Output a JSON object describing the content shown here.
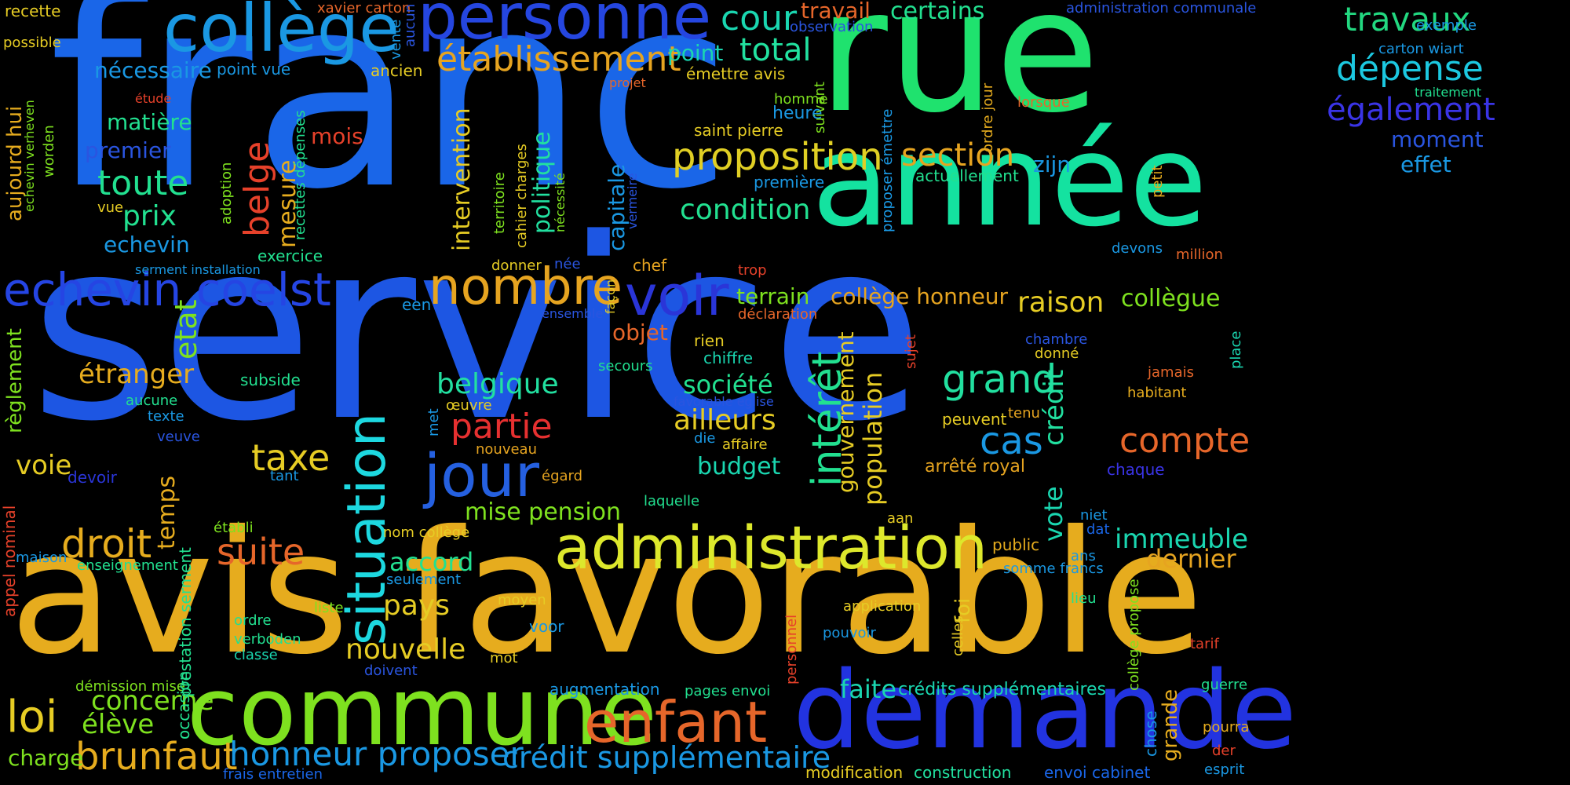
{
  "words": [
    {
      "text": "service",
      "color": "#1d56e3"
    },
    {
      "text": "franc",
      "color": "#1a66e8"
    },
    {
      "text": "avis favorable",
      "color": "#e6ac1e"
    },
    {
      "text": "rue",
      "color": "#1fe26e"
    },
    {
      "text": "année",
      "color": "#14e2a0"
    },
    {
      "text": "commune",
      "color": "#7ee11f"
    },
    {
      "text": "demande",
      "color": "#2233e0"
    },
    {
      "text": "collège",
      "color": "#1a98e3"
    },
    {
      "text": "personne",
      "color": "#2546e0"
    },
    {
      "text": "administration",
      "color": "#dde82c"
    },
    {
      "text": "enfant",
      "color": "#e6662a"
    },
    {
      "text": "situation",
      "color": "#1dd8e0"
    },
    {
      "text": "nombre",
      "color": "#e6a420"
    },
    {
      "text": "echevin coelst",
      "color": "#2545e3"
    },
    {
      "text": "voir",
      "color": "#2a35d8"
    },
    {
      "text": "jour",
      "color": "#2560e0"
    },
    {
      "text": "proposition",
      "color": "#e0cf24"
    },
    {
      "text": "établissement",
      "color": "#e6a420"
    },
    {
      "text": "travaux",
      "color": "#22d880"
    },
    {
      "text": "dépense",
      "color": "#1cc8e0"
    },
    {
      "text": "également",
      "color": "#3a34e6"
    },
    {
      "text": "cour",
      "color": "#1ad6b0"
    },
    {
      "text": "total",
      "color": "#22e2a0"
    },
    {
      "text": "brunfaut",
      "color": "#e6ac1e"
    },
    {
      "text": "loi",
      "color": "#e6cc24"
    },
    {
      "text": "crédit supplémentaire",
      "color": "#1a98e3"
    },
    {
      "text": "honneur proposer",
      "color": "#1a98e3"
    },
    {
      "text": "suite",
      "color": "#e6662a"
    },
    {
      "text": "droit",
      "color": "#e6ac1e"
    },
    {
      "text": "compte",
      "color": "#e6662a"
    },
    {
      "text": "intérêt",
      "color": "#22e090"
    },
    {
      "text": "grand",
      "color": "#22e0a0"
    },
    {
      "text": "cas",
      "color": "#1a98e3"
    },
    {
      "text": "taxe",
      "color": "#e6cc24"
    },
    {
      "text": "section",
      "color": "#e6a420"
    },
    {
      "text": "belge",
      "color": "#e6412a"
    },
    {
      "text": "partie",
      "color": "#e63030"
    },
    {
      "text": "condition",
      "color": "#22e090"
    },
    {
      "text": "raison",
      "color": "#e6cc24"
    },
    {
      "text": "toute",
      "color": "#22e090"
    },
    {
      "text": "nouvelle",
      "color": "#e6cc24"
    },
    {
      "text": "pays",
      "color": "#e6cc24"
    },
    {
      "text": "étranger",
      "color": "#e6ac1e"
    },
    {
      "text": "immeuble",
      "color": "#1ad6b0"
    },
    {
      "text": "belgique",
      "color": "#22e0a0"
    },
    {
      "text": "ailleurs",
      "color": "#e6cc24"
    },
    {
      "text": "prix",
      "color": "#22e090"
    },
    {
      "text": "dernier",
      "color": "#e6a420"
    },
    {
      "text": "voie",
      "color": "#e6cc24"
    },
    {
      "text": "faite",
      "color": "#1ad6b0"
    },
    {
      "text": "concerne",
      "color": "#7ee11f"
    },
    {
      "text": "élève",
      "color": "#7ee11f"
    },
    {
      "text": "mise pension",
      "color": "#7ee11f"
    },
    {
      "text": "accord",
      "color": "#22e090"
    },
    {
      "text": "société",
      "color": "#22e090"
    },
    {
      "text": "terrain",
      "color": "#7ee11f"
    },
    {
      "text": "collège honneur",
      "color": "#e6a420"
    },
    {
      "text": "collègue",
      "color": "#7ee11f"
    },
    {
      "text": "budget",
      "color": "#1ad6b0"
    },
    {
      "text": "charge",
      "color": "#7ee11f"
    },
    {
      "text": "premier",
      "color": "#2a55e0"
    },
    {
      "text": "nécessaire",
      "color": "#1a98e3"
    },
    {
      "text": "matière",
      "color": "#22e090"
    },
    {
      "text": "echevin",
      "color": "#1a98e3"
    },
    {
      "text": "moment",
      "color": "#2a55e0"
    },
    {
      "text": "effet",
      "color": "#1a98e3"
    },
    {
      "text": "zijn",
      "color": "#1a98e3"
    },
    {
      "text": "mois",
      "color": "#e6412a"
    },
    {
      "text": "objet",
      "color": "#e6662a"
    },
    {
      "text": "travail",
      "color": "#e6662a"
    },
    {
      "text": "certains",
      "color": "#22e090"
    },
    {
      "text": "point",
      "color": "#1ad6b0"
    },
    {
      "text": "crédits supplémentaires",
      "color": "#1ad6b0"
    },
    {
      "text": "augmentation",
      "color": "#1a98e3"
    },
    {
      "text": "exercice",
      "color": "#22e090"
    },
    {
      "text": "arrêté royal",
      "color": "#e6a420"
    },
    {
      "text": "actuellement",
      "color": "#22e090"
    },
    {
      "text": "point vue",
      "color": "#1a98e3"
    },
    {
      "text": "ancien",
      "color": "#e6cc24"
    },
    {
      "text": "saint pierre",
      "color": "#e6cc24"
    },
    {
      "text": "émettre avis",
      "color": "#e6cc24"
    },
    {
      "text": "première",
      "color": "#1a98e3"
    },
    {
      "text": "heure",
      "color": "#1a98e3"
    },
    {
      "text": "homme",
      "color": "#7ee11f"
    },
    {
      "text": "subside",
      "color": "#22e090"
    },
    {
      "text": "aucune",
      "color": "#22e090"
    },
    {
      "text": "texte",
      "color": "#1a98e3"
    },
    {
      "text": "veuve",
      "color": "#2a55e0"
    },
    {
      "text": "devoir",
      "color": "#2a35d8"
    },
    {
      "text": "tant",
      "color": "#1a98e3"
    },
    {
      "text": "enseignement",
      "color": "#22e090"
    },
    {
      "text": "maison",
      "color": "#1a98e3"
    },
    {
      "text": "établi",
      "color": "#7ee11f"
    },
    {
      "text": "seulement",
      "color": "#1a98e3"
    },
    {
      "text": "nom collège",
      "color": "#e6cc24"
    },
    {
      "text": "liste",
      "color": "#7ee11f"
    },
    {
      "text": "ordre",
      "color": "#22e090"
    },
    {
      "text": "verboden",
      "color": "#22e090"
    },
    {
      "text": "classe",
      "color": "#1ad6b0"
    },
    {
      "text": "doivent",
      "color": "#2a55e0"
    },
    {
      "text": "moyen",
      "color": "#e6cc24"
    },
    {
      "text": "mot",
      "color": "#e6cc24"
    },
    {
      "text": "voor",
      "color": "#1a98e3"
    },
    {
      "text": "démission mise",
      "color": "#7ee11f"
    },
    {
      "text": "pages envoi",
      "color": "#22e090"
    },
    {
      "text": "frais entretien",
      "color": "#1a66e8"
    },
    {
      "text": "modification",
      "color": "#e6cc24"
    },
    {
      "text": "construction",
      "color": "#22e0a0"
    },
    {
      "text": "envoi cabinet",
      "color": "#1a66e8"
    },
    {
      "text": "esprit",
      "color": "#1a98e3"
    },
    {
      "text": "der",
      "color": "#e6412a"
    },
    {
      "text": "pourra",
      "color": "#e6ac1e"
    },
    {
      "text": "guerre",
      "color": "#22e090"
    },
    {
      "text": "tarif",
      "color": "#e6412a"
    },
    {
      "text": "lieu",
      "color": "#22e090"
    },
    {
      "text": "somme francs",
      "color": "#1a98e3"
    },
    {
      "text": "public",
      "color": "#e6ac1e"
    },
    {
      "text": "ans",
      "color": "#1a98e3"
    },
    {
      "text": "dat",
      "color": "#1a66e8"
    },
    {
      "text": "niet",
      "color": "#1a98e3"
    },
    {
      "text": "aan",
      "color": "#e6cc24"
    },
    {
      "text": "application",
      "color": "#e6cc24"
    },
    {
      "text": "pouvoir",
      "color": "#1a98e3"
    },
    {
      "text": "laquelle",
      "color": "#22e090"
    },
    {
      "text": "égard",
      "color": "#e6a420"
    },
    {
      "text": "nouveau",
      "color": "#e6a420"
    },
    {
      "text": "affaire",
      "color": "#e6cc24"
    },
    {
      "text": "die",
      "color": "#1a98e3"
    },
    {
      "text": "favorable eglise",
      "color": "#2a55e0"
    },
    {
      "text": "peuvent",
      "color": "#e6cc24"
    },
    {
      "text": "tenu",
      "color": "#e6a420"
    },
    {
      "text": "habitant",
      "color": "#e6ac1e"
    },
    {
      "text": "jamais",
      "color": "#e6662a"
    },
    {
      "text": "chaque",
      "color": "#3a34e6"
    },
    {
      "text": "donné",
      "color": "#e6cc24"
    },
    {
      "text": "chambre",
      "color": "#2a55e0"
    },
    {
      "text": "million",
      "color": "#e6662a"
    },
    {
      "text": "devons",
      "color": "#1a98e3"
    },
    {
      "text": "chiffre",
      "color": "#1ad6b0"
    },
    {
      "text": "rien",
      "color": "#e6cc24"
    },
    {
      "text": "secours",
      "color": "#22e090"
    },
    {
      "text": "déclaration",
      "color": "#e6662a"
    },
    {
      "text": "trop",
      "color": "#e6412a"
    },
    {
      "text": "chef",
      "color": "#e6a420"
    },
    {
      "text": "née",
      "color": "#2a55e0"
    },
    {
      "text": "donner",
      "color": "#e6cc24"
    },
    {
      "text": "een",
      "color": "#1a98e3"
    },
    {
      "text": "ensemble",
      "color": "#2a55e0"
    },
    {
      "text": "œuvre",
      "color": "#e6cc24"
    },
    {
      "text": "serment installation",
      "color": "#1a98e3"
    },
    {
      "text": "possible",
      "color": "#e6cc24"
    },
    {
      "text": "recette",
      "color": "#e6cc24"
    },
    {
      "text": "xavier carton",
      "color": "#e6662a"
    },
    {
      "text": "vue",
      "color": "#e6cc24"
    },
    {
      "text": "projet",
      "color": "#e6662a"
    },
    {
      "text": "étude",
      "color": "#e6412a"
    },
    {
      "text": "observation",
      "color": "#2a55e0"
    },
    {
      "text": "administration communale",
      "color": "#2a55e0"
    },
    {
      "text": "exemple",
      "color": "#1a98e3"
    },
    {
      "text": "carton wiart",
      "color": "#1a98e3"
    },
    {
      "text": "traitement",
      "color": "#22e090"
    },
    {
      "text": "lorsque",
      "color": "#e6662a"
    },
    {
      "text": "capitale",
      "color": "#1a98e3"
    },
    {
      "text": "population",
      "color": "#e6cc24"
    },
    {
      "text": "gouvernement",
      "color": "#e6cc24"
    },
    {
      "text": "crédit",
      "color": "#22e0a0"
    },
    {
      "text": "vote",
      "color": "#1ad6b0"
    },
    {
      "text": "etat",
      "color": "#7ee11f"
    },
    {
      "text": "mesure",
      "color": "#e6ac1e"
    },
    {
      "text": "politique",
      "color": "#22e0a0"
    },
    {
      "text": "intervention",
      "color": "#e6cc24"
    },
    {
      "text": "temps",
      "color": "#e6ac1e"
    },
    {
      "text": "aujourd hui",
      "color": "#e6ac1e"
    },
    {
      "text": "règlement",
      "color": "#7ee11f"
    },
    {
      "text": "prestation serment",
      "color": "#22e090"
    },
    {
      "text": "occasion",
      "color": "#22e090"
    },
    {
      "text": "appel nominal",
      "color": "#e6412a"
    },
    {
      "text": "echevin verheven",
      "color": "#7ee11f"
    },
    {
      "text": "worden",
      "color": "#7ee11f"
    },
    {
      "text": "recettes dépenses",
      "color": "#22e090"
    },
    {
      "text": "adoption",
      "color": "#7ee11f"
    },
    {
      "text": "vente",
      "color": "#1a98e3"
    },
    {
      "text": "aucun",
      "color": "#2a55e0"
    },
    {
      "text": "cahier charges",
      "color": "#e6cc24"
    },
    {
      "text": "territoire",
      "color": "#7ee11f"
    },
    {
      "text": "nécessité",
      "color": "#7ee11f"
    },
    {
      "text": "vermeire",
      "color": "#2a55e0"
    },
    {
      "text": "façon",
      "color": "#e6cc24"
    },
    {
      "text": "met",
      "color": "#1a98e3"
    },
    {
      "text": "suivant",
      "color": "#7ee11f"
    },
    {
      "text": "proposer émettre",
      "color": "#1a98e3"
    },
    {
      "text": "ordre jour",
      "color": "#e6ac1e"
    },
    {
      "text": "petit",
      "color": "#e6ac1e"
    },
    {
      "text": "place",
      "color": "#1ad6b0"
    },
    {
      "text": "sujet",
      "color": "#e6412a"
    },
    {
      "text": "personnel",
      "color": "#e6412a"
    },
    {
      "text": "foi",
      "color": "#e6cc24"
    },
    {
      "text": "celles",
      "color": "#e6cc24"
    },
    {
      "text": "collège propose",
      "color": "#7ee11f"
    },
    {
      "text": "chose",
      "color": "#1a98e3"
    },
    {
      "text": "grande",
      "color": "#e6ac1e"
    }
  ]
}
